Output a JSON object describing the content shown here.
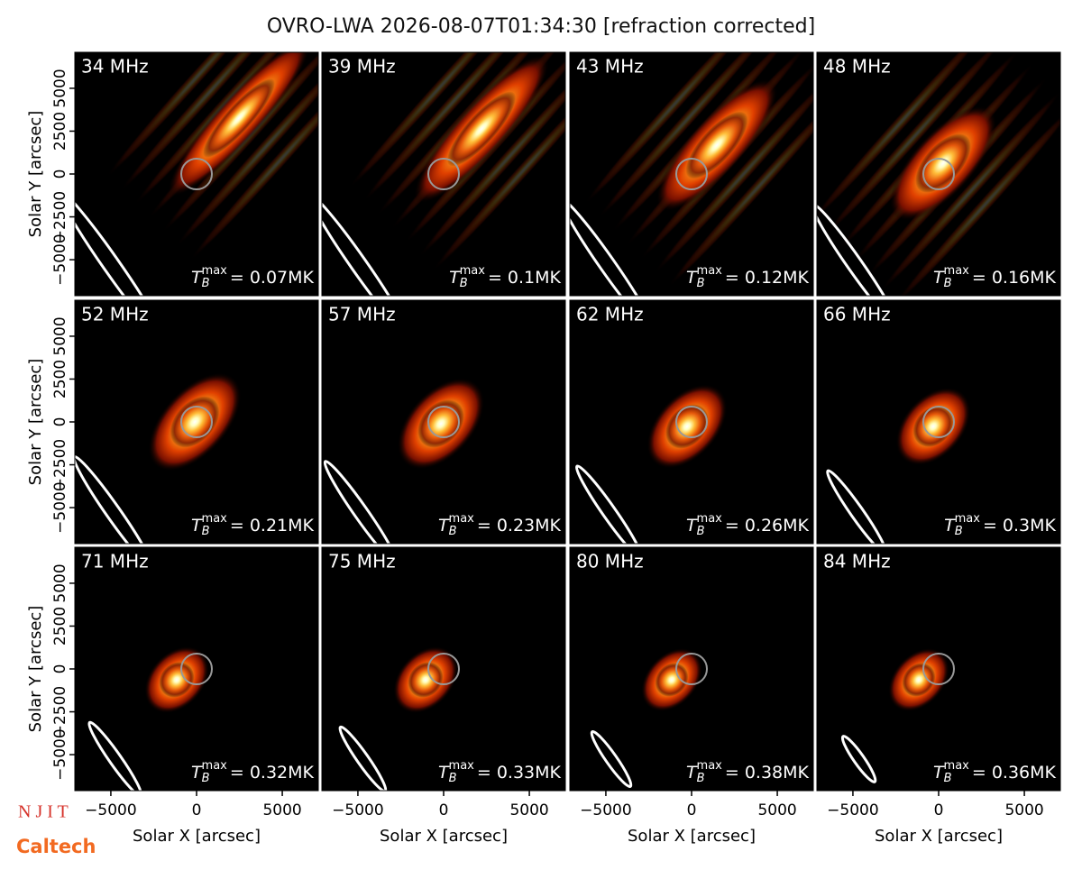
{
  "title": "OVRO-LWA 2026-08-07T01:34:30 [refraction corrected]",
  "logos": [
    "N J I T",
    "Caltech"
  ],
  "chart_data": [
    {
      "type": "image",
      "title": "34 MHz",
      "annotation": {
        "base": "T",
        "sub": "B",
        "sup": "max",
        "text": "= 0.07MK"
      },
      "xlim": [
        -7100,
        7100
      ],
      "ylim": [
        -7100,
        7100
      ],
      "ylabel": "Solar Y [arcsec]",
      "yticks": [
        {
          "value": -5000,
          "label": "−5000"
        },
        {
          "value": -2500,
          "label": "−2500"
        },
        0,
        2500,
        5000
      ]
    },
    {
      "type": "image",
      "title": "39 MHz",
      "annotation": {
        "base": "T",
        "sub": "B",
        "sup": "max",
        "text": "= 0.1MK"
      },
      "xlim": [
        -7100,
        7100
      ],
      "ylim": [
        -7100,
        7100
      ]
    },
    {
      "type": "image",
      "title": "43 MHz",
      "annotation": {
        "base": "T",
        "sub": "B",
        "sup": "max",
        "text": "= 0.12MK"
      },
      "xlim": [
        -7100,
        7100
      ],
      "ylim": [
        -7100,
        7100
      ]
    },
    {
      "type": "image",
      "title": "48 MHz",
      "annotation": {
        "base": "T",
        "sub": "B",
        "sup": "max",
        "text": "= 0.16MK"
      },
      "xlim": [
        -7100,
        7100
      ],
      "ylim": [
        -7100,
        7100
      ]
    },
    {
      "type": "image",
      "title": "52 MHz",
      "annotation": {
        "base": "T",
        "sub": "B",
        "sup": "max",
        "text": "= 0.21MK"
      },
      "xlim": [
        -7100,
        7100
      ],
      "ylim": [
        -7100,
        7100
      ],
      "ylabel": "Solar Y [arcsec]",
      "yticks": [
        {
          "value": -5000,
          "label": "−5000"
        },
        {
          "value": -2500,
          "label": "−2500"
        },
        0,
        2500,
        5000
      ]
    },
    {
      "type": "image",
      "title": "57 MHz",
      "annotation": {
        "base": "T",
        "sub": "B",
        "sup": "max",
        "text": "= 0.23MK"
      },
      "xlim": [
        -7100,
        7100
      ],
      "ylim": [
        -7100,
        7100
      ]
    },
    {
      "type": "image",
      "title": "62 MHz",
      "annotation": {
        "base": "T",
        "sub": "B",
        "sup": "max",
        "text": "= 0.26MK"
      },
      "xlim": [
        -7100,
        7100
      ],
      "ylim": [
        -7100,
        7100
      ]
    },
    {
      "type": "image",
      "title": "66 MHz",
      "annotation": {
        "base": "T",
        "sub": "B",
        "sup": "max",
        "text": "= 0.3MK"
      },
      "xlim": [
        -7100,
        7100
      ],
      "ylim": [
        -7100,
        7100
      ]
    },
    {
      "type": "image",
      "title": "71 MHz",
      "annotation": {
        "base": "T",
        "sub": "B",
        "sup": "max",
        "text": "= 0.32MK"
      },
      "xlim": [
        -7100,
        7100
      ],
      "ylim": [
        -7100,
        7100
      ],
      "ylabel": "Solar Y [arcsec]",
      "yticks": [
        {
          "value": -5000,
          "label": "−5000"
        },
        {
          "value": -2500,
          "label": "−2500"
        },
        0,
        2500,
        5000
      ],
      "xlabel": "Solar X [arcsec]",
      "xticks": [
        {
          "value": -5000,
          "label": "−5000"
        },
        0,
        5000
      ]
    },
    {
      "type": "image",
      "title": "75 MHz",
      "annotation": {
        "base": "T",
        "sub": "B",
        "sup": "max",
        "text": "= 0.33MK"
      },
      "xlim": [
        -7100,
        7100
      ],
      "ylim": [
        -7100,
        7100
      ],
      "xlabel": "Solar X [arcsec]",
      "xticks": [
        {
          "value": -5000,
          "label": "−5000"
        },
        0,
        5000
      ]
    },
    {
      "type": "image",
      "title": "80 MHz",
      "annotation": {
        "base": "T",
        "sub": "B",
        "sup": "max",
        "text": "= 0.38MK"
      },
      "xlim": [
        -7100,
        7100
      ],
      "ylim": [
        -7100,
        7100
      ],
      "xlabel": "Solar X [arcsec]",
      "xticks": [
        {
          "value": -5000,
          "label": "−5000"
        },
        0,
        5000
      ]
    },
    {
      "type": "image",
      "title": "84 MHz",
      "annotation": {
        "base": "T",
        "sub": "B",
        "sup": "max",
        "text": "= 0.36MK"
      },
      "xlim": [
        -7100,
        7100
      ],
      "ylim": [
        -7100,
        7100
      ],
      "xlabel": "Solar X [arcsec]",
      "xticks": [
        {
          "value": -5000,
          "label": "−5000"
        },
        0,
        5000
      ]
    }
  ]
}
